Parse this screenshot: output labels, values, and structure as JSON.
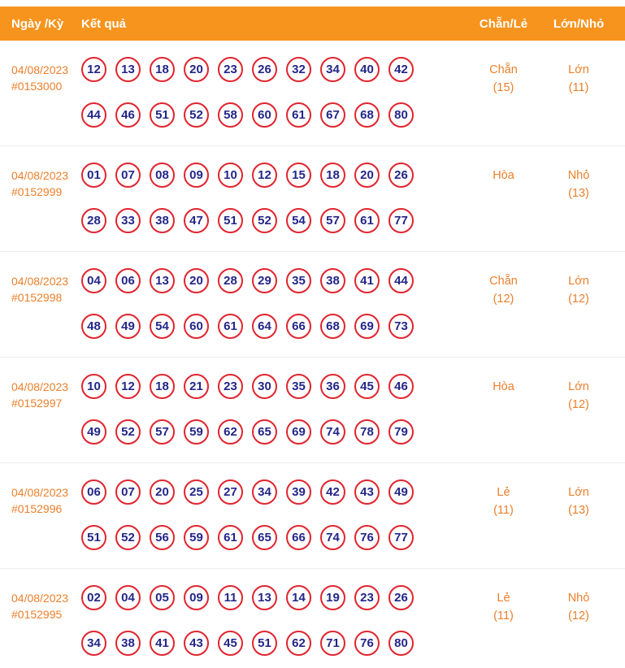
{
  "header": {
    "col_date": "Ngày /Kỳ",
    "col_result": "Kết quả",
    "col_parity": "Chẵn/Lẻ",
    "col_size": "Lớn/Nhỏ"
  },
  "colors": {
    "header_bg": "#F7941E",
    "accent_orange": "#EC7F2B",
    "circle_border": "#E0252F",
    "number_text": "#232688",
    "divider": "#ECECEC"
  },
  "rows": [
    {
      "date": "04/08/2023",
      "id": "#0153000",
      "numbers_line1": [
        "12",
        "13",
        "18",
        "20",
        "23",
        "26",
        "32",
        "34",
        "40",
        "42"
      ],
      "numbers_line2": [
        "44",
        "46",
        "51",
        "52",
        "58",
        "60",
        "61",
        "67",
        "68",
        "80"
      ],
      "parity": {
        "label": "Chẵn",
        "count": "(15)"
      },
      "size": {
        "label": "Lớn",
        "count": "(11)"
      }
    },
    {
      "date": "04/08/2023",
      "id": "#0152999",
      "numbers_line1": [
        "01",
        "07",
        "08",
        "09",
        "10",
        "12",
        "15",
        "18",
        "20",
        "26"
      ],
      "numbers_line2": [
        "28",
        "33",
        "38",
        "47",
        "51",
        "52",
        "54",
        "57",
        "61",
        "77"
      ],
      "parity": {
        "label": "Hòa",
        "count": ""
      },
      "size": {
        "label": "Nhỏ",
        "count": "(13)"
      }
    },
    {
      "date": "04/08/2023",
      "id": "#0152998",
      "numbers_line1": [
        "04",
        "06",
        "13",
        "20",
        "28",
        "29",
        "35",
        "38",
        "41",
        "44"
      ],
      "numbers_line2": [
        "48",
        "49",
        "54",
        "60",
        "61",
        "64",
        "66",
        "68",
        "69",
        "73"
      ],
      "parity": {
        "label": "Chẵn",
        "count": "(12)"
      },
      "size": {
        "label": "Lớn",
        "count": "(12)"
      }
    },
    {
      "date": "04/08/2023",
      "id": "#0152997",
      "numbers_line1": [
        "10",
        "12",
        "18",
        "21",
        "23",
        "30",
        "35",
        "36",
        "45",
        "46"
      ],
      "numbers_line2": [
        "49",
        "52",
        "57",
        "59",
        "62",
        "65",
        "69",
        "74",
        "78",
        "79"
      ],
      "parity": {
        "label": "Hòa",
        "count": ""
      },
      "size": {
        "label": "Lớn",
        "count": "(12)"
      }
    },
    {
      "date": "04/08/2023",
      "id": "#0152996",
      "numbers_line1": [
        "06",
        "07",
        "20",
        "25",
        "27",
        "34",
        "39",
        "42",
        "43",
        "49"
      ],
      "numbers_line2": [
        "51",
        "52",
        "56",
        "59",
        "61",
        "65",
        "66",
        "74",
        "76",
        "77"
      ],
      "parity": {
        "label": "Lẻ",
        "count": "(11)"
      },
      "size": {
        "label": "Lớn",
        "count": "(13)"
      }
    },
    {
      "date": "04/08/2023",
      "id": "#0152995",
      "numbers_line1": [
        "02",
        "04",
        "05",
        "09",
        "11",
        "13",
        "14",
        "19",
        "23",
        "26"
      ],
      "numbers_line2": [
        "34",
        "38",
        "41",
        "43",
        "45",
        "51",
        "62",
        "71",
        "76",
        "80"
      ],
      "parity": {
        "label": "Lẻ",
        "count": "(11)"
      },
      "size": {
        "label": "Nhỏ",
        "count": "(12)"
      }
    }
  ]
}
